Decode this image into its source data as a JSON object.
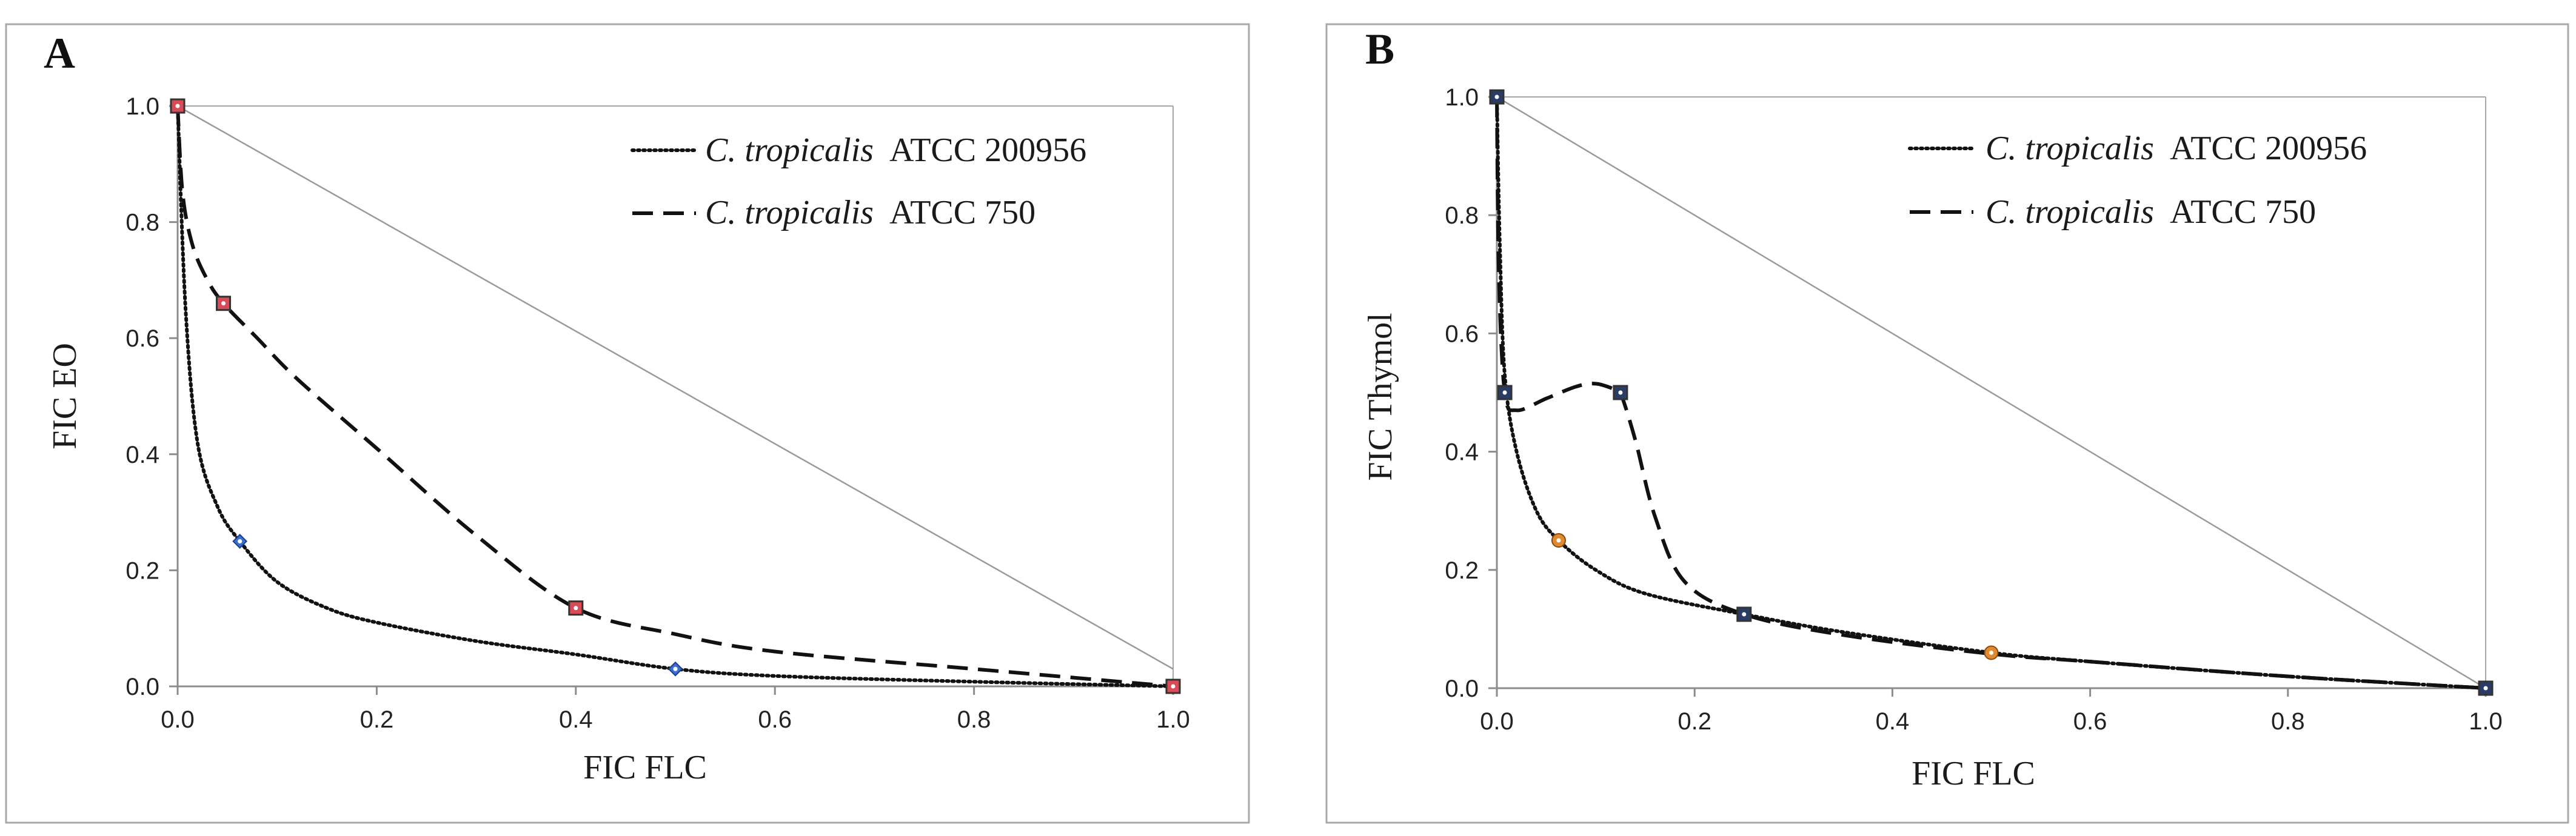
{
  "figure": {
    "panels": [
      "A",
      "B"
    ]
  },
  "chart_data": [
    {
      "type": "line",
      "panel_label": "A",
      "title": "",
      "xlabel": "FIC FLC",
      "ylabel": "FIC EO",
      "xlim": [
        0,
        1.0
      ],
      "ylim": [
        0,
        1.0
      ],
      "x_ticks": [
        "0.0",
        "0.2",
        "0.4",
        "0.6",
        "0.8",
        "1.0"
      ],
      "y_ticks": [
        "0.0",
        "0.2",
        "0.4",
        "0.6",
        "0.8",
        "1.0"
      ],
      "grid": false,
      "reference_line": {
        "x": [
          0,
          1.0
        ],
        "y": [
          1.0,
          0.03
        ]
      },
      "legend_position": "top-right",
      "series": [
        {
          "name": "C. tropicalis ATCC 200956",
          "species": "C. tropicalis",
          "strain": "ATCC 200956",
          "style": "dotted",
          "marker_color": "#3b6fd4",
          "x": [
            0.0,
            0.008,
            0.02,
            0.04,
            0.0625,
            0.1,
            0.15,
            0.2,
            0.3,
            0.4,
            0.5,
            0.6,
            0.8,
            1.0
          ],
          "y": [
            1.0,
            0.65,
            0.42,
            0.31,
            0.25,
            0.18,
            0.135,
            0.11,
            0.078,
            0.055,
            0.03,
            0.018,
            0.008,
            0.0
          ],
          "markers": {
            "x": [
              0.0625,
              0.5
            ],
            "y": [
              0.25,
              0.03
            ]
          }
        },
        {
          "name": "C. tropicalis ATCC 750",
          "species": "C. tropicalis",
          "strain": "ATCC 750",
          "style": "dashed",
          "marker_color": "#d94b57",
          "x": [
            0.0,
            0.005,
            0.015,
            0.03,
            0.046,
            0.08,
            0.12,
            0.2,
            0.3,
            0.4,
            0.5,
            0.6,
            0.8,
            1.0
          ],
          "y": [
            1.0,
            0.85,
            0.76,
            0.7,
            0.66,
            0.6,
            0.53,
            0.41,
            0.26,
            0.135,
            0.09,
            0.06,
            0.03,
            0.0
          ],
          "markers": {
            "x": [
              0.0,
              0.046,
              0.4,
              1.0
            ],
            "y": [
              1.0,
              0.66,
              0.135,
              0.0
            ]
          }
        }
      ]
    },
    {
      "type": "line",
      "panel_label": "B",
      "title": "",
      "xlabel": "FIC FLC",
      "ylabel": "FIC Thymol",
      "xlim": [
        0,
        1.0
      ],
      "ylim": [
        0,
        1.0
      ],
      "x_ticks": [
        "0.0",
        "0.2",
        "0.4",
        "0.6",
        "0.8",
        "1.0"
      ],
      "y_ticks": [
        "0.0",
        "0.2",
        "0.4",
        "0.6",
        "0.8",
        "1.0"
      ],
      "grid": false,
      "reference_line": {
        "x": [
          0,
          1.0
        ],
        "y": [
          1.0,
          0.0
        ]
      },
      "legend_position": "top-right",
      "series": [
        {
          "name": "C. tropicalis ATCC 200956",
          "species": "C. tropicalis",
          "strain": "ATCC 200956",
          "style": "dotted",
          "marker_color": "#e08a2f",
          "x": [
            0.0,
            0.003,
            0.008,
            0.02,
            0.04,
            0.0625,
            0.1,
            0.15,
            0.25,
            0.35,
            0.5,
            0.6,
            0.8,
            1.0
          ],
          "y": [
            1.0,
            0.75,
            0.53,
            0.4,
            0.3,
            0.25,
            0.2,
            0.16,
            0.125,
            0.095,
            0.06,
            0.045,
            0.02,
            0.0
          ],
          "markers": {
            "x": [
              0.0625,
              0.5
            ],
            "y": [
              0.25,
              0.06
            ]
          }
        },
        {
          "name": "C. tropicalis ATCC 750",
          "species": "C. tropicalis",
          "strain": "ATCC 750",
          "style": "dashed",
          "marker_color": "#2a3d66",
          "x": [
            0.0,
            0.002,
            0.008,
            0.02,
            0.05,
            0.08,
            0.1,
            0.12,
            0.125,
            0.14,
            0.16,
            0.19,
            0.25,
            0.35,
            0.5,
            0.6,
            0.8,
            1.0
          ],
          "y": [
            1.0,
            0.7,
            0.5,
            0.47,
            0.49,
            0.51,
            0.515,
            0.505,
            0.5,
            0.42,
            0.29,
            0.18,
            0.125,
            0.09,
            0.058,
            0.045,
            0.02,
            0.0
          ],
          "markers": {
            "x": [
              0.0,
              0.008,
              0.125,
              0.25,
              1.0
            ],
            "y": [
              1.0,
              0.5,
              0.5,
              0.125,
              0.0
            ]
          }
        }
      ]
    }
  ]
}
